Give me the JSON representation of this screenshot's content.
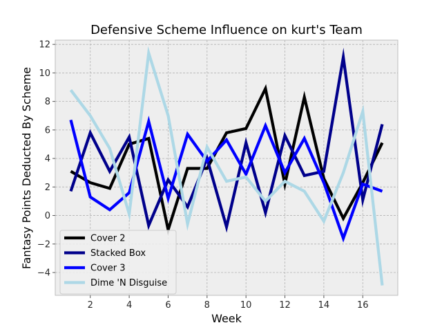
{
  "chart_data": {
    "type": "line",
    "title": "Defensive Scheme Influence on kurt's Team",
    "xlabel": "Week",
    "ylabel": "Fantasy Points Deducted By Scheme",
    "xlim": [
      0.2,
      17.8
    ],
    "ylim": [
      -5.6,
      12.3
    ],
    "xticks": [
      2,
      4,
      6,
      8,
      10,
      12,
      14,
      16
    ],
    "yticks": [
      -4,
      -2,
      0,
      2,
      4,
      6,
      8,
      10,
      12
    ],
    "grid": true,
    "legend_position": "lower-left",
    "x": [
      1,
      2,
      3,
      4,
      5,
      6,
      7,
      8,
      9,
      10,
      11,
      12,
      13,
      14,
      15,
      16,
      17
    ],
    "series": [
      {
        "name": "Cover 2",
        "color": "#000000",
        "values": [
          3.1,
          2.3,
          1.9,
          5.0,
          5.4,
          -1.0,
          3.3,
          3.3,
          5.8,
          6.1,
          8.9,
          2.2,
          8.3,
          2.6,
          -0.2,
          2.3,
          5.1
        ]
      },
      {
        "name": "Stacked Box",
        "color": "#00008b",
        "values": [
          1.7,
          5.8,
          3.1,
          5.5,
          -0.7,
          2.5,
          0.6,
          4.0,
          -0.8,
          5.1,
          0.2,
          5.6,
          2.8,
          3.1,
          11.1,
          1.1,
          6.4
        ]
      },
      {
        "name": "Cover 3",
        "color": "#0000ff",
        "values": [
          6.7,
          1.3,
          0.4,
          1.6,
          6.6,
          1.2,
          5.7,
          3.8,
          5.3,
          2.9,
          6.3,
          3.0,
          5.4,
          2.3,
          -1.6,
          2.2,
          1.7
        ]
      },
      {
        "name": "Dime 'N Disguise",
        "color": "#add8e6",
        "values": [
          8.8,
          7.0,
          4.7,
          0.1,
          11.4,
          7.0,
          -0.6,
          4.8,
          2.4,
          2.7,
          1.0,
          2.4,
          1.7,
          -0.4,
          3.0,
          7.3,
          -4.9
        ]
      }
    ]
  }
}
